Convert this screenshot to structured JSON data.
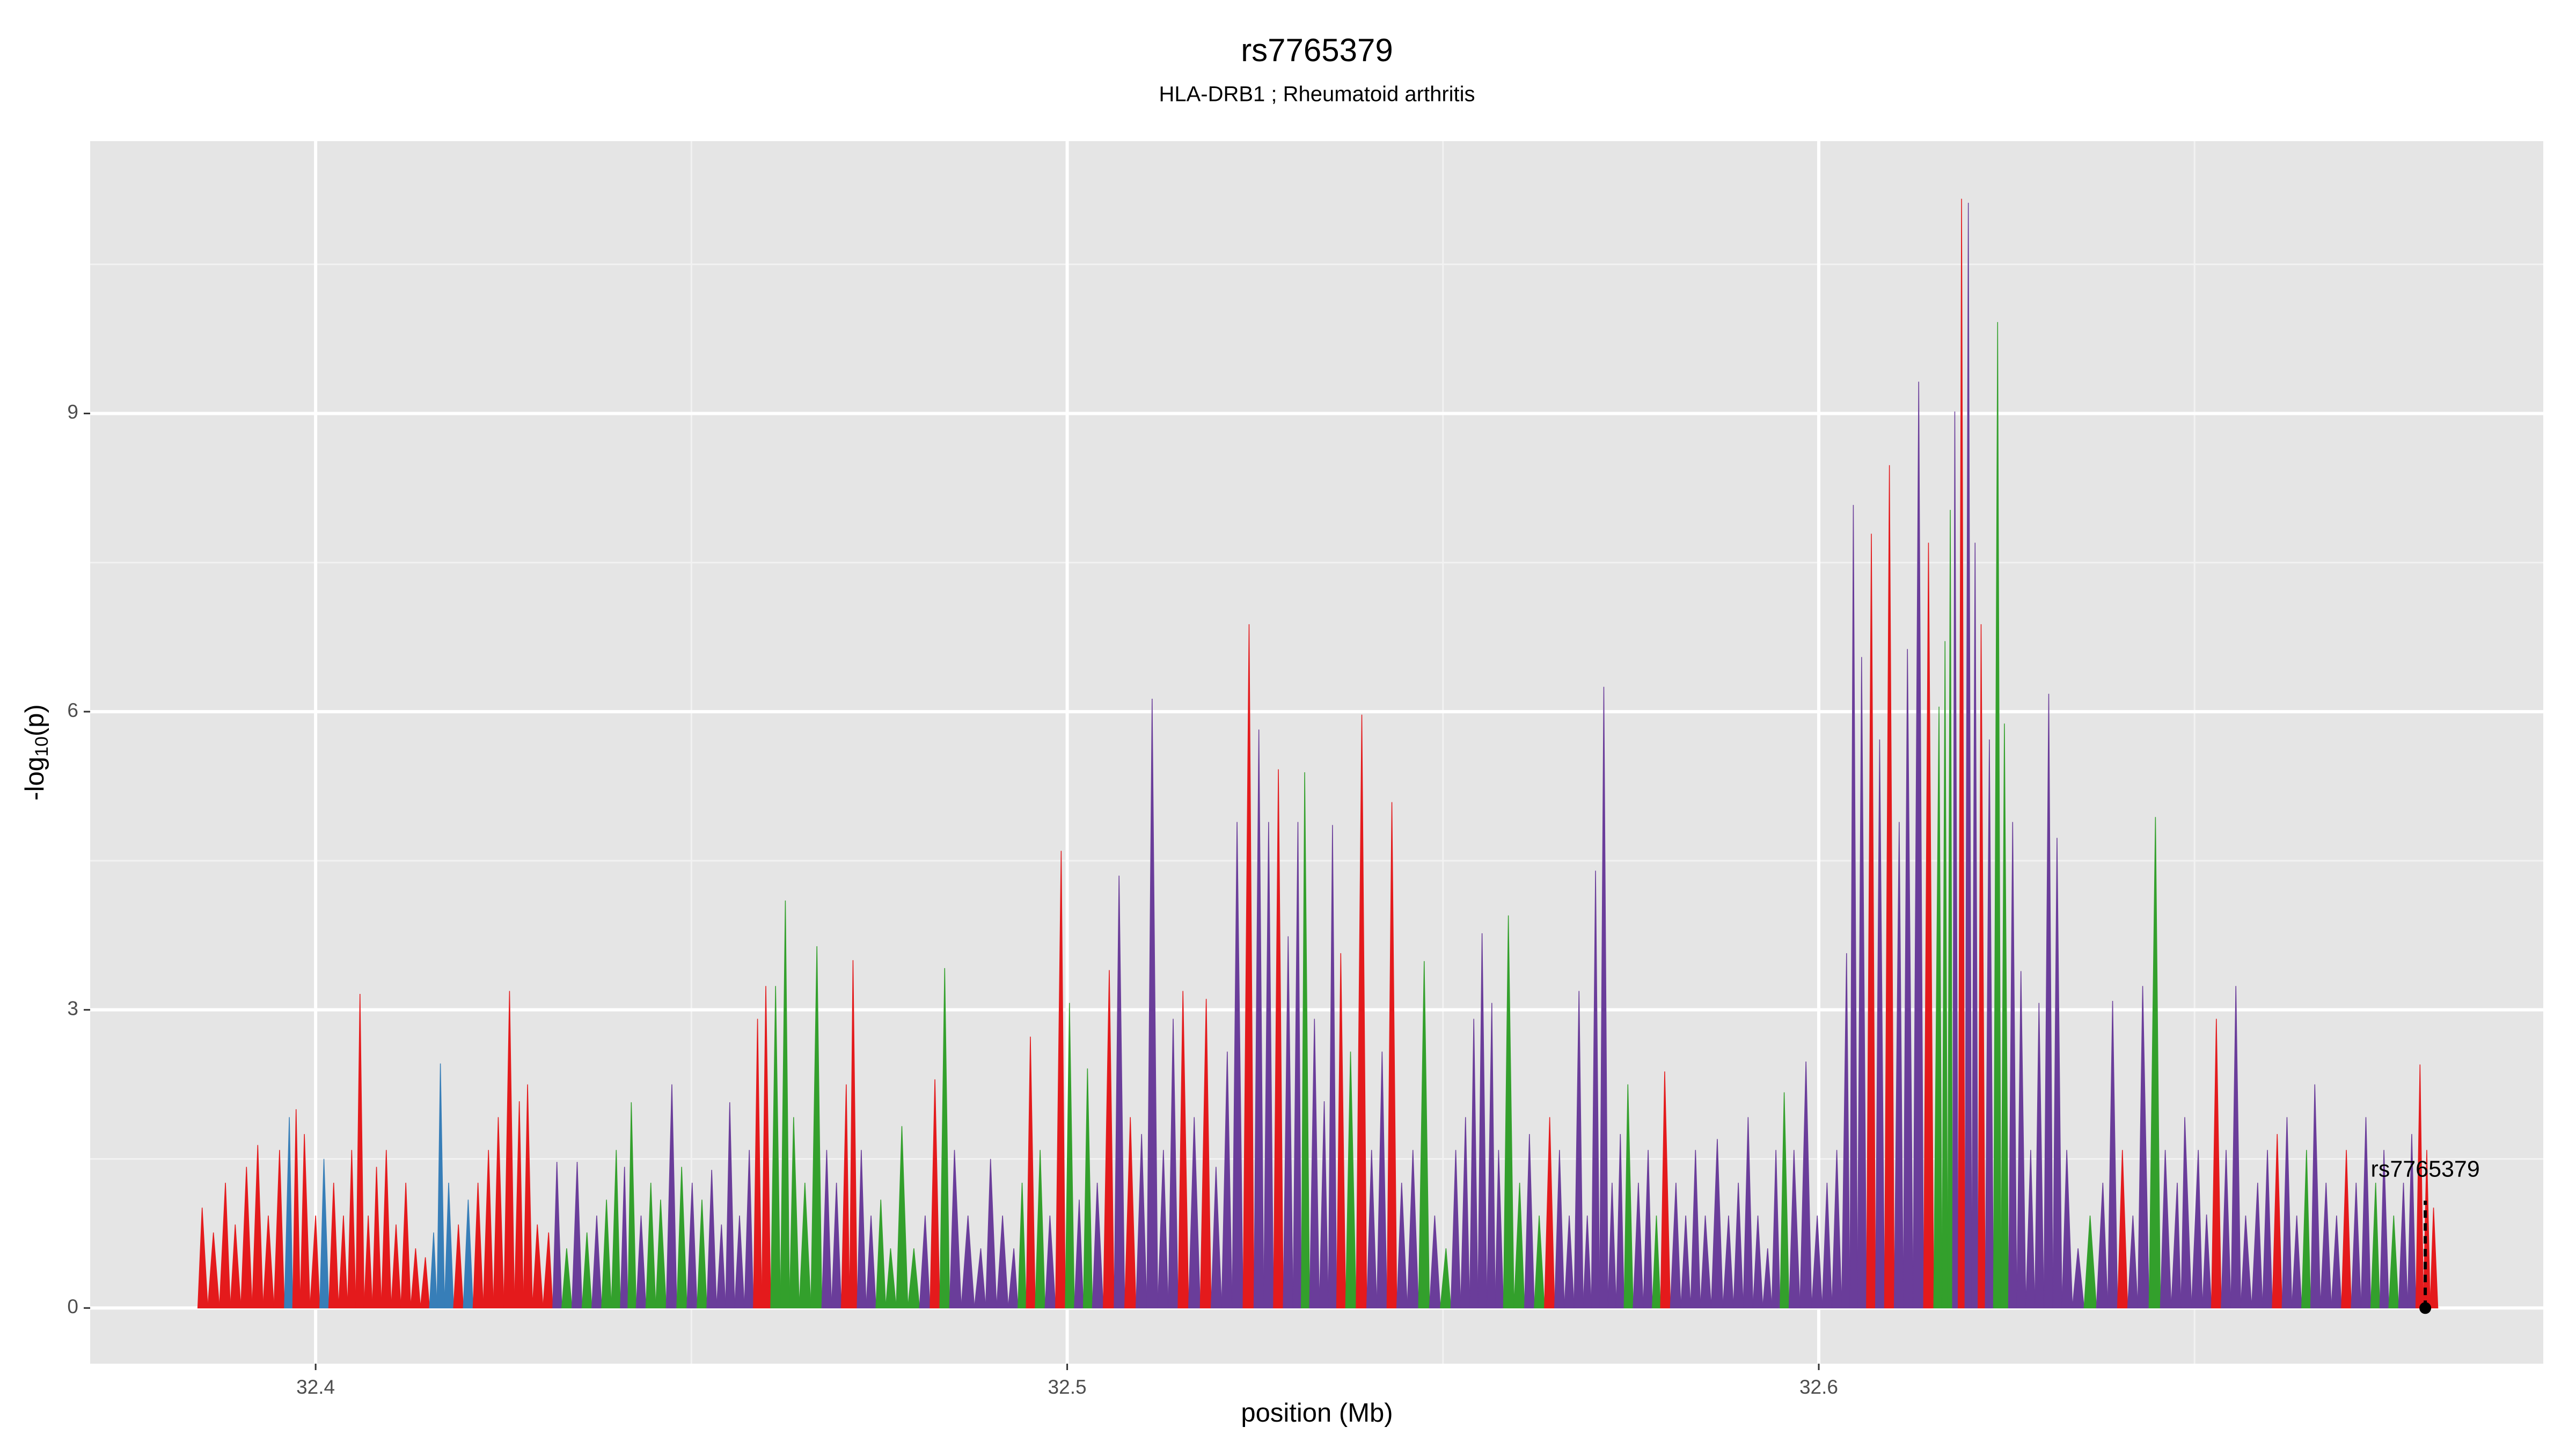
{
  "chart_data": {
    "type": "spike",
    "title": "rs7765379",
    "subtitle": "HLA-DRB1 ; Rheumatoid arthritis",
    "x_label": "position (Mb)",
    "y_label": {
      "main": "-log",
      "sub": "10",
      "tail": "(p)"
    },
    "xlim": [
      32.37,
      32.6964
    ],
    "ylim": [
      -0.56,
      11.74
    ],
    "xticks": [
      32.4,
      32.5,
      32.6
    ],
    "yticks": [
      0,
      3,
      6,
      9
    ],
    "minor_xticks": [
      32.45,
      32.55,
      32.65
    ],
    "minor_yticks": [
      1.5,
      4.5,
      7.5,
      10.5
    ],
    "grid": true,
    "palette": {
      "r": "#e41a1c",
      "b": "#377eb8",
      "g": "#33a02c",
      "p": "#6a3d9a"
    },
    "x": [
      32.3849,
      32.3864,
      32.388,
      32.3893,
      32.3908,
      32.3923,
      32.3937,
      32.3952,
      32.3965,
      32.3974,
      32.3985,
      32.4,
      32.4011,
      32.4024,
      32.4037,
      32.4048,
      32.4059,
      32.407,
      32.4081,
      32.4094,
      32.4107,
      32.412,
      32.4133,
      32.4146,
      32.4157,
      32.4166,
      32.4177,
      32.419,
      32.4203,
      32.4216,
      32.423,
      32.4243,
      32.4258,
      32.4271,
      32.4282,
      32.4295,
      32.431,
      32.4321,
      32.4334,
      32.4348,
      32.4361,
      32.4374,
      32.4387,
      32.44,
      32.4411,
      32.442,
      32.4433,
      32.4446,
      32.4459,
      32.4474,
      32.4487,
      32.4501,
      32.4514,
      32.4527,
      32.454,
      32.4551,
      32.4564,
      32.4577,
      32.4588,
      32.4599,
      32.4612,
      32.4625,
      32.4636,
      32.4651,
      32.4667,
      32.468,
      32.4693,
      32.4706,
      32.4715,
      32.4726,
      32.4739,
      32.4752,
      32.4765,
      32.478,
      32.4796,
      32.4811,
      32.4824,
      32.4837,
      32.485,
      32.4868,
      32.4885,
      32.4898,
      32.4914,
      32.4929,
      32.494,
      32.4951,
      32.4964,
      32.4977,
      32.4992,
      32.5003,
      32.5016,
      32.5027,
      32.504,
      32.5056,
      32.5069,
      32.5084,
      32.5099,
      32.5113,
      32.5128,
      32.5141,
      32.5154,
      32.5169,
      32.5185,
      32.5198,
      32.5213,
      32.5226,
      32.5242,
      32.5255,
      32.5268,
      32.5281,
      32.5294,
      32.5307,
      32.5316,
      32.5329,
      32.5342,
      32.5353,
      32.5364,
      32.5377,
      32.5392,
      32.5405,
      32.5419,
      32.5432,
      32.5445,
      32.546,
      32.5475,
      32.5489,
      32.5504,
      32.5517,
      32.553,
      32.5541,
      32.5552,
      32.5565,
      32.5574,
      32.5587,
      32.5602,
      32.5615,
      32.5628,
      32.5642,
      32.5655,
      32.5668,
      32.5681,
      32.5692,
      32.5703,
      32.5714,
      32.5725,
      32.5736,
      32.5746,
      32.576,
      32.5773,
      32.5784,
      32.5795,
      32.581,
      32.5823,
      32.5836,
      32.5849,
      32.5865,
      32.588,
      32.5893,
      32.5906,
      32.5919,
      32.5932,
      32.5943,
      32.5954,
      32.5967,
      32.5983,
      32.5998,
      32.6011,
      32.6024,
      32.6037,
      32.6046,
      32.6057,
      32.607,
      32.6081,
      32.6094,
      32.6107,
      32.6118,
      32.6133,
      32.6146,
      32.616,
      32.6168,
      32.6175,
      32.6181,
      32.619,
      32.6199,
      32.6208,
      32.6216,
      32.6227,
      32.6238,
      32.6247,
      32.6258,
      32.6269,
      32.6282,
      32.6293,
      32.6306,
      32.6317,
      32.633,
      32.6345,
      32.6361,
      32.6378,
      32.6391,
      32.6404,
      32.6418,
      32.6431,
      32.6448,
      32.6461,
      32.6477,
      32.6487,
      32.6505,
      32.6516,
      32.6529,
      32.6542,
      32.6555,
      32.6568,
      32.6584,
      32.6597,
      32.661,
      32.6623,
      32.6636,
      32.6649,
      32.666,
      32.6675,
      32.6689,
      32.6702,
      32.6715,
      32.6728,
      32.6741,
      32.6752,
      32.6765,
      32.6778,
      32.6789,
      32.68,
      32.6809,
      32.6818
    ],
    "values": [
      1.01,
      0.76,
      1.26,
      0.84,
      1.42,
      1.64,
      0.93,
      1.59,
      1.92,
      2.0,
      1.75,
      0.93,
      1.5,
      1.26,
      0.93,
      1.59,
      3.16,
      0.93,
      1.42,
      1.59,
      0.84,
      1.26,
      0.6,
      0.51,
      0.76,
      2.46,
      1.26,
      0.84,
      1.09,
      1.26,
      1.59,
      1.92,
      3.19,
      2.08,
      2.25,
      0.84,
      0.76,
      1.47,
      0.6,
      1.47,
      0.76,
      0.93,
      1.09,
      1.59,
      1.42,
      2.07,
      0.93,
      1.26,
      1.09,
      2.25,
      1.42,
      1.26,
      1.09,
      1.39,
      0.84,
      2.07,
      0.93,
      1.59,
      2.91,
      3.24,
      3.24,
      4.1,
      1.92,
      1.26,
      3.64,
      1.59,
      1.26,
      2.25,
      3.5,
      1.59,
      0.93,
      1.09,
      0.6,
      1.83,
      0.6,
      0.93,
      2.3,
      3.42,
      1.59,
      0.93,
      0.6,
      1.5,
      0.93,
      0.6,
      1.26,
      2.73,
      1.59,
      0.93,
      4.6,
      3.07,
      1.09,
      2.41,
      1.26,
      3.4,
      4.35,
      1.92,
      1.75,
      6.13,
      1.59,
      2.91,
      3.19,
      1.92,
      3.11,
      1.42,
      2.58,
      4.89,
      6.88,
      5.82,
      4.89,
      5.42,
      3.74,
      4.89,
      5.39,
      2.91,
      2.08,
      4.86,
      3.57,
      2.58,
      5.97,
      1.59,
      2.58,
      5.09,
      1.26,
      1.59,
      3.49,
      0.93,
      0.6,
      1.59,
      1.92,
      2.91,
      3.77,
      3.07,
      1.59,
      3.95,
      1.26,
      1.75,
      0.93,
      1.92,
      1.59,
      0.93,
      3.19,
      0.93,
      4.4,
      6.25,
      1.26,
      1.75,
      2.25,
      1.26,
      1.59,
      0.93,
      2.38,
      1.26,
      0.93,
      1.59,
      0.93,
      1.7,
      0.93,
      1.26,
      1.92,
      0.93,
      0.6,
      1.59,
      2.17,
      1.59,
      2.48,
      0.93,
      1.26,
      1.59,
      3.57,
      8.08,
      6.55,
      7.79,
      5.72,
      8.48,
      4.89,
      6.63,
      9.32,
      7.7,
      6.05,
      6.71,
      8.03,
      9.02,
      11.16,
      11.12,
      7.7,
      6.88,
      5.72,
      9.92,
      5.88,
      4.89,
      3.39,
      1.59,
      3.07,
      6.18,
      4.73,
      1.59,
      0.6,
      0.93,
      1.26,
      3.09,
      1.59,
      0.93,
      3.24,
      4.94,
      1.59,
      1.26,
      1.92,
      1.59,
      0.94,
      2.91,
      1.59,
      3.24,
      0.93,
      1.26,
      1.59,
      1.75,
      1.92,
      0.93,
      1.59,
      2.25,
      1.26,
      0.93,
      1.59,
      1.26,
      1.92,
      1.26,
      1.59,
      0.93,
      1.26,
      1.75,
      2.45,
      1.59,
      1.01
    ],
    "point_colors": [
      "r",
      "r",
      "r",
      "r",
      "r",
      "r",
      "r",
      "r",
      "b",
      "r",
      "r",
      "r",
      "b",
      "r",
      "r",
      "r",
      "r",
      "r",
      "r",
      "r",
      "r",
      "r",
      "r",
      "r",
      "b",
      "b",
      "b",
      "r",
      "b",
      "r",
      "r",
      "r",
      "r",
      "r",
      "r",
      "r",
      "r",
      "p",
      "g",
      "p",
      "g",
      "p",
      "g",
      "g",
      "p",
      "g",
      "p",
      "g",
      "g",
      "p",
      "g",
      "p",
      "g",
      "p",
      "p",
      "p",
      "p",
      "p",
      "r",
      "r",
      "g",
      "g",
      "g",
      "g",
      "g",
      "p",
      "p",
      "r",
      "r",
      "p",
      "p",
      "g",
      "g",
      "g",
      "g",
      "p",
      "r",
      "g",
      "p",
      "p",
      "p",
      "p",
      "p",
      "p",
      "g",
      "r",
      "g",
      "p",
      "r",
      "g",
      "p",
      "g",
      "p",
      "r",
      "p",
      "r",
      "p",
      "p",
      "p",
      "p",
      "r",
      "p",
      "r",
      "p",
      "p",
      "p",
      "r",
      "p",
      "p",
      "r",
      "p",
      "p",
      "g",
      "p",
      "p",
      "p",
      "r",
      "g",
      "r",
      "p",
      "p",
      "r",
      "p",
      "p",
      "g",
      "p",
      "g",
      "p",
      "p",
      "p",
      "p",
      "p",
      "p",
      "g",
      "g",
      "p",
      "g",
      "r",
      "p",
      "p",
      "p",
      "p",
      "p",
      "p",
      "p",
      "p",
      "g",
      "p",
      "p",
      "g",
      "r",
      "p",
      "p",
      "p",
      "p",
      "p",
      "p",
      "p",
      "p",
      "p",
      "p",
      "p",
      "g",
      "p",
      "p",
      "p",
      "p",
      "p",
      "p",
      "p",
      "p",
      "r",
      "p",
      "r",
      "p",
      "p",
      "p",
      "r",
      "g",
      "g",
      "g",
      "p",
      "r",
      "p",
      "p",
      "r",
      "p",
      "g",
      "g",
      "p",
      "p",
      "p",
      "p",
      "p",
      "p",
      "p",
      "p",
      "g",
      "p",
      "p",
      "r",
      "p",
      "p",
      "g",
      "p",
      "p",
      "p",
      "p",
      "p",
      "r",
      "p",
      "p",
      "p",
      "p",
      "p",
      "r",
      "p",
      "p",
      "g",
      "p",
      "p",
      "p",
      "r",
      "p",
      "p",
      "g",
      "p",
      "g",
      "p",
      "p",
      "r",
      "r",
      "r"
    ],
    "annotation": {
      "label": "rs7765379",
      "x": 32.6807,
      "y": 0
    }
  }
}
